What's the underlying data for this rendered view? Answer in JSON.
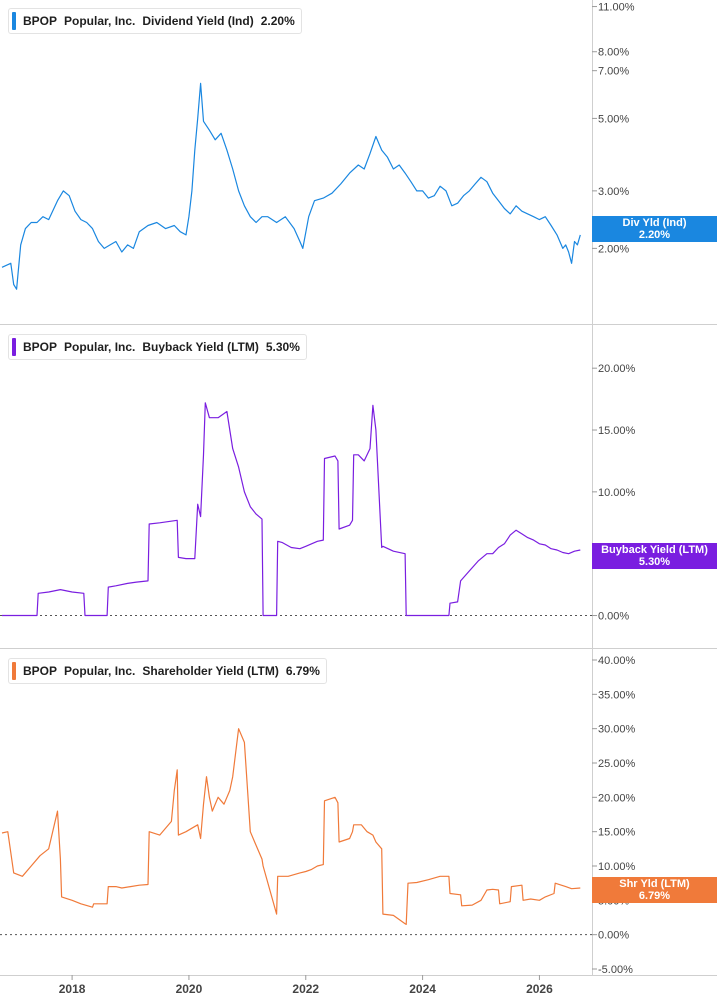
{
  "panels": [
    {
      "ticker": "BPOP",
      "company": "Popular, Inc.",
      "metric": "Dividend Yield (Ind)",
      "value": "2.20%",
      "badge_label": "Div Yld (Ind)",
      "badge_value": "2.20%",
      "color": "#1a87e0"
    },
    {
      "ticker": "BPOP",
      "company": "Popular, Inc.",
      "metric": "Buyback Yield (LTM)",
      "value": "5.30%",
      "badge_label": "Buyback Yield (LTM)",
      "badge_value": "5.30%",
      "color": "#7a1ee0"
    },
    {
      "ticker": "BPOP",
      "company": "Popular, Inc.",
      "metric": "Shareholder Yield (LTM)",
      "value": "6.79%",
      "badge_label": "Shr Yld (LTM)",
      "badge_value": "6.79%",
      "color": "#f07a3a"
    }
  ],
  "x_axis": {
    "ticks": [
      "2018",
      "2020",
      "2022",
      "2024",
      "2026"
    ],
    "tick_values": [
      2018,
      2020,
      2022,
      2024,
      2026
    ],
    "range": [
      2016.8,
      2026.9
    ]
  },
  "chart_data": [
    {
      "type": "line",
      "scale": "log",
      "ylim": [
        1.45,
        11.2
      ],
      "ticks": [
        2,
        3,
        5,
        7,
        8,
        11
      ],
      "tick_labels": [
        "2.00%",
        "3.00%",
        "5.00%",
        "7.00%",
        "8.00%",
        "11.00%"
      ],
      "zero_line": false,
      "x": [
        2016.8,
        2016.95,
        2017.0,
        2017.05,
        2017.12,
        2017.2,
        2017.3,
        2017.4,
        2017.5,
        2017.6,
        2017.75,
        2017.85,
        2017.95,
        2018.05,
        2018.15,
        2018.25,
        2018.35,
        2018.45,
        2018.55,
        2018.65,
        2018.75,
        2018.85,
        2018.95,
        2019.05,
        2019.15,
        2019.3,
        2019.45,
        2019.6,
        2019.75,
        2019.85,
        2019.95,
        2020.0,
        2020.05,
        2020.1,
        2020.15,
        2020.2,
        2020.25,
        2020.35,
        2020.45,
        2020.55,
        2020.65,
        2020.75,
        2020.85,
        2020.95,
        2021.05,
        2021.15,
        2021.25,
        2021.35,
        2021.5,
        2021.65,
        2021.8,
        2021.9,
        2021.95,
        2022.05,
        2022.15,
        2022.3,
        2022.45,
        2022.6,
        2022.75,
        2022.9,
        2023.0,
        2023.1,
        2023.2,
        2023.3,
        2023.4,
        2023.5,
        2023.6,
        2023.7,
        2023.8,
        2023.9,
        2024.0,
        2024.1,
        2024.2,
        2024.3,
        2024.4,
        2024.5,
        2024.6,
        2024.7,
        2024.8,
        2024.9,
        2025.0,
        2025.1,
        2025.2,
        2025.3,
        2025.4,
        2025.5,
        2025.6,
        2025.7,
        2025.8,
        2025.9,
        2026.0,
        2026.1,
        2026.2,
        2026.3,
        2026.4,
        2026.45,
        2026.5,
        2026.55,
        2026.6,
        2026.65,
        2026.7
      ],
      "values": [
        1.75,
        1.8,
        1.55,
        1.5,
        2.05,
        2.3,
        2.4,
        2.4,
        2.5,
        2.45,
        2.8,
        3.0,
        2.9,
        2.6,
        2.45,
        2.4,
        2.3,
        2.1,
        2.0,
        2.05,
        2.1,
        1.95,
        2.05,
        2.0,
        2.25,
        2.35,
        2.4,
        2.3,
        2.35,
        2.25,
        2.2,
        2.5,
        3.0,
        4.0,
        5.0,
        6.4,
        4.9,
        4.6,
        4.3,
        4.5,
        4.0,
        3.5,
        3.0,
        2.7,
        2.5,
        2.4,
        2.5,
        2.5,
        2.4,
        2.5,
        2.3,
        2.1,
        2.0,
        2.5,
        2.8,
        2.85,
        2.95,
        3.15,
        3.4,
        3.6,
        3.5,
        3.9,
        4.4,
        4.0,
        3.8,
        3.5,
        3.6,
        3.4,
        3.2,
        3.0,
        3.0,
        2.85,
        2.9,
        3.1,
        3.0,
        2.7,
        2.75,
        2.9,
        3.0,
        3.15,
        3.3,
        3.2,
        2.95,
        2.8,
        2.65,
        2.55,
        2.7,
        2.6,
        2.55,
        2.5,
        2.45,
        2.5,
        2.35,
        2.2,
        2.0,
        2.05,
        1.95,
        1.8,
        2.1,
        2.05,
        2.2
      ]
    },
    {
      "type": "line",
      "scale": "linear",
      "ylim": [
        -0.2,
        20.5
      ],
      "ticks": [
        0,
        5,
        10,
        15,
        20
      ],
      "tick_labels": [
        "0.00%",
        "5.00%",
        "10.00%",
        "15.00%",
        "20.00%"
      ],
      "zero_line": true,
      "x": [
        2016.8,
        2017.4,
        2017.42,
        2017.6,
        2017.8,
        2018.0,
        2018.2,
        2018.22,
        2018.6,
        2018.62,
        2018.75,
        2018.95,
        2019.1,
        2019.3,
        2019.32,
        2019.5,
        2019.8,
        2019.82,
        2019.95,
        2020.1,
        2020.15,
        2020.2,
        2020.25,
        2020.28,
        2020.35,
        2020.5,
        2020.65,
        2020.75,
        2020.85,
        2020.95,
        2021.05,
        2021.15,
        2021.25,
        2021.27,
        2021.5,
        2021.52,
        2021.6,
        2021.75,
        2021.9,
        2022.0,
        2022.1,
        2022.2,
        2022.3,
        2022.32,
        2022.5,
        2022.55,
        2022.57,
        2022.75,
        2022.8,
        2022.82,
        2022.9,
        2023.0,
        2023.1,
        2023.15,
        2023.2,
        2023.3,
        2023.32,
        2023.5,
        2023.7,
        2023.72,
        2024.0,
        2024.3,
        2024.45,
        2024.47,
        2024.6,
        2024.65,
        2024.8,
        2024.95,
        2025.1,
        2025.2,
        2025.3,
        2025.4,
        2025.5,
        2025.6,
        2025.7,
        2025.8,
        2025.9,
        2026.0,
        2026.1,
        2026.2,
        2026.3,
        2026.4,
        2026.5,
        2026.6,
        2026.7
      ],
      "values": [
        0,
        0,
        1.8,
        1.9,
        2.1,
        1.9,
        1.8,
        0,
        0,
        2.3,
        2.4,
        2.6,
        2.7,
        2.8,
        7.4,
        7.5,
        7.7,
        4.7,
        4.6,
        4.6,
        9.0,
        8.0,
        13.0,
        17.2,
        16.0,
        16.0,
        16.5,
        13.5,
        12.0,
        10.0,
        8.8,
        8.2,
        7.8,
        0,
        0,
        6.0,
        5.9,
        5.5,
        5.4,
        5.6,
        5.8,
        6.0,
        6.1,
        12.7,
        12.9,
        12.5,
        7.0,
        7.3,
        7.7,
        13.0,
        13.0,
        12.5,
        13.5,
        17.0,
        15.0,
        5.5,
        5.6,
        5.2,
        5.0,
        0,
        0,
        0,
        0,
        1.0,
        1.1,
        2.8,
        3.6,
        4.4,
        5.0,
        5.0,
        5.5,
        5.8,
        6.5,
        6.9,
        6.6,
        6.3,
        6.1,
        5.8,
        5.7,
        5.4,
        5.3,
        5.1,
        5.0,
        5.2,
        5.3
      ]
    },
    {
      "type": "line",
      "scale": "linear",
      "ylim": [
        -5.0,
        40.0
      ],
      "ticks": [
        -5,
        0,
        5,
        10,
        15,
        20,
        25,
        30,
        35,
        40
      ],
      "tick_labels": [
        "-5.00%",
        "0.00%",
        "5.00%",
        "10.00%",
        "15.00%",
        "20.00%",
        "25.00%",
        "30.00%",
        "35.00%",
        "40.00%"
      ],
      "zero_line": true,
      "x": [
        2016.8,
        2016.9,
        2017.0,
        2017.15,
        2017.3,
        2017.45,
        2017.6,
        2017.75,
        2017.8,
        2017.82,
        2018.0,
        2018.15,
        2018.35,
        2018.37,
        2018.6,
        2018.62,
        2018.75,
        2018.85,
        2019.0,
        2019.15,
        2019.3,
        2019.32,
        2019.5,
        2019.7,
        2019.75,
        2019.8,
        2019.82,
        2019.95,
        2020.05,
        2020.15,
        2020.2,
        2020.25,
        2020.3,
        2020.35,
        2020.4,
        2020.5,
        2020.6,
        2020.7,
        2020.75,
        2020.85,
        2020.95,
        2021.05,
        2021.15,
        2021.25,
        2021.27,
        2021.5,
        2021.52,
        2021.7,
        2021.9,
        2022.0,
        2022.1,
        2022.2,
        2022.3,
        2022.32,
        2022.5,
        2022.55,
        2022.57,
        2022.75,
        2022.8,
        2022.82,
        2022.95,
        2023.05,
        2023.15,
        2023.2,
        2023.3,
        2023.32,
        2023.5,
        2023.7,
        2023.72,
        2023.75,
        2023.9,
        2024.1,
        2024.3,
        2024.45,
        2024.47,
        2024.65,
        2024.67,
        2024.85,
        2025.0,
        2025.1,
        2025.2,
        2025.3,
        2025.32,
        2025.5,
        2025.52,
        2025.7,
        2025.72,
        2025.85,
        2026.0,
        2026.1,
        2026.25,
        2026.27,
        2026.45,
        2026.55,
        2026.7
      ],
      "values": [
        14.8,
        15.0,
        9.0,
        8.5,
        10.0,
        11.5,
        12.5,
        18.0,
        11.0,
        5.5,
        5.0,
        4.5,
        4.0,
        4.5,
        4.5,
        7.0,
        7.0,
        6.8,
        7.0,
        7.2,
        7.3,
        15.0,
        14.5,
        16.5,
        21.0,
        24.0,
        14.5,
        15.0,
        15.5,
        16.0,
        14.0,
        19.0,
        23.0,
        20.0,
        18.0,
        20.0,
        19.0,
        21.0,
        23.0,
        30.0,
        28.0,
        15.0,
        13.0,
        11.0,
        10.0,
        3.0,
        8.5,
        8.5,
        9.0,
        9.2,
        9.5,
        10.0,
        10.2,
        19.5,
        20.0,
        19.2,
        13.5,
        14.0,
        15.0,
        16.0,
        16.0,
        15.0,
        14.5,
        13.5,
        12.5,
        3.0,
        2.8,
        1.6,
        1.5,
        7.5,
        7.6,
        8.0,
        8.5,
        8.5,
        6.0,
        5.8,
        4.2,
        4.3,
        5.0,
        6.5,
        6.6,
        6.5,
        4.5,
        4.8,
        7.0,
        7.2,
        5.0,
        5.2,
        5.0,
        5.5,
        6.0,
        7.5,
        7.0,
        6.7,
        6.8
      ]
    }
  ]
}
